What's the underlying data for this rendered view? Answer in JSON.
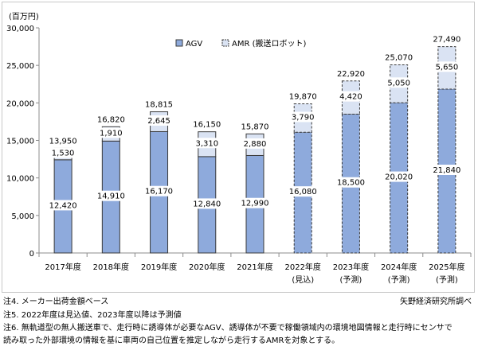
{
  "chart_data": {
    "type": "bar",
    "stacked": true,
    "unit": "(百万円)",
    "categories": [
      {
        "line1": "2017年度",
        "line2": ""
      },
      {
        "line1": "2018年度",
        "line2": ""
      },
      {
        "line1": "2019年度",
        "line2": ""
      },
      {
        "line1": "2020年度",
        "line2": ""
      },
      {
        "line1": "2021年度",
        "line2": ""
      },
      {
        "line1": "2022年度",
        "line2": "(見込)"
      },
      {
        "line1": "2023年度",
        "line2": "(予測)"
      },
      {
        "line1": "2024年度",
        "line2": "(予測)"
      },
      {
        "line1": "2025年度",
        "line2": "(予測)"
      }
    ],
    "series": [
      {
        "name": "AGV",
        "color": "#8eaadc",
        "values": [
          12420,
          14910,
          16170,
          12840,
          12990,
          16080,
          18500,
          20020,
          21840
        ],
        "labels": [
          "12,420",
          "14,910",
          "16,170",
          "12,840",
          "12,990",
          "16,080",
          "18,500",
          "20,020",
          "21,840"
        ]
      },
      {
        "name": "AMR (搬送ロボット)",
        "color": "#dae3f3",
        "values": [
          1530,
          1910,
          2645,
          3310,
          2880,
          3790,
          4420,
          5050,
          5650
        ],
        "labels": [
          "1,530",
          "1,910",
          "2,645",
          "3,310",
          "2,880",
          "3,790",
          "4,420",
          "5,050",
          "5,650"
        ]
      }
    ],
    "totals": {
      "values": [
        13950,
        16820,
        18815,
        16150,
        15870,
        19870,
        22920,
        25070,
        27490
      ],
      "labels": [
        "13,950",
        "16,820",
        "18,815",
        "16,150",
        "15,870",
        "19,870",
        "22,920",
        "25,070",
        "27,490"
      ]
    },
    "forecast_from_index": 5,
    "ylim": [
      0,
      30000
    ],
    "yticks": [
      0,
      5000,
      10000,
      15000,
      20000,
      25000,
      30000
    ],
    "ytick_labels": [
      "0",
      "5,000",
      "10,000",
      "15,000",
      "20,000",
      "25,000",
      "30,000"
    ],
    "grid": false,
    "legend_position": "top-left"
  },
  "notes": {
    "note4": "注4.  メーカー出荷金額ベース",
    "source": "矢野経済研究所調べ",
    "note5": "注5.  2022年度は見込値、2023年度以降は予測値",
    "note6_line1": "注6.  無軌道型の無人搬送車で、走行時に誘導体が必要なAGV、誘導体が不要で稼働領域内の環境地図情報と走行時にセンサで",
    "note6_line2": "読み取った外部環境の情報を基に車両の自己位置を推定しながら走行するAMRを対象とする。"
  }
}
